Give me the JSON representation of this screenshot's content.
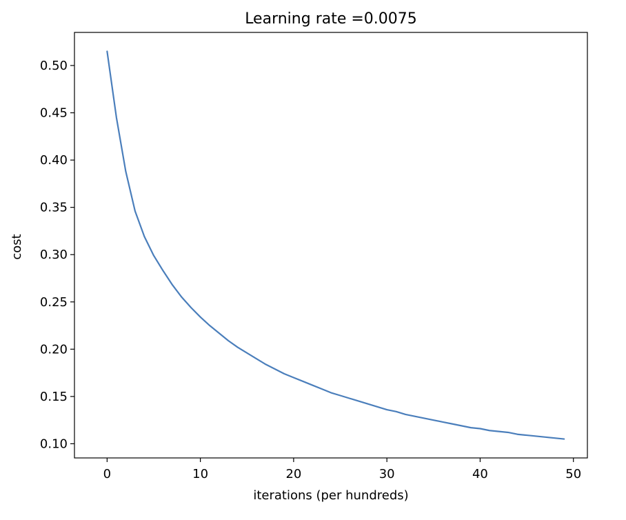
{
  "chart_data": {
    "type": "line",
    "title": "Learning rate =0.0075",
    "xlabel": "iterations (per hundreds)",
    "ylabel": "cost",
    "xlim": [
      -3.5,
      51.5
    ],
    "ylim": [
      0.085,
      0.535
    ],
    "x_ticks": [
      0,
      10,
      20,
      30,
      40,
      50
    ],
    "x_tick_labels": [
      "0",
      "10",
      "20",
      "30",
      "40",
      "50"
    ],
    "y_ticks": [
      0.1,
      0.15,
      0.2,
      0.25,
      0.3,
      0.35,
      0.4,
      0.45,
      0.5
    ],
    "y_tick_labels": [
      "0.10",
      "0.15",
      "0.20",
      "0.25",
      "0.30",
      "0.35",
      "0.40",
      "0.45",
      "0.50"
    ],
    "grid": false,
    "series": [
      {
        "color": "#4a7ebb",
        "x": [
          0,
          1,
          2,
          3,
          4,
          5,
          6,
          7,
          8,
          9,
          10,
          11,
          12,
          13,
          14,
          15,
          16,
          17,
          18,
          19,
          20,
          21,
          22,
          23,
          24,
          25,
          26,
          27,
          28,
          29,
          30,
          31,
          32,
          33,
          34,
          35,
          36,
          37,
          38,
          39,
          40,
          41,
          42,
          43,
          44,
          45,
          46,
          47,
          48,
          49
        ],
        "values": [
          0.515,
          0.445,
          0.388,
          0.346,
          0.319,
          0.299,
          0.283,
          0.268,
          0.255,
          0.244,
          0.234,
          0.225,
          0.217,
          0.209,
          0.202,
          0.196,
          0.19,
          0.184,
          0.179,
          0.174,
          0.17,
          0.166,
          0.162,
          0.158,
          0.154,
          0.151,
          0.148,
          0.145,
          0.142,
          0.139,
          0.136,
          0.134,
          0.131,
          0.129,
          0.127,
          0.125,
          0.123,
          0.121,
          0.119,
          0.117,
          0.116,
          0.114,
          0.113,
          0.112,
          0.11,
          0.109,
          0.108,
          0.107,
          0.106,
          0.105
        ]
      }
    ]
  }
}
